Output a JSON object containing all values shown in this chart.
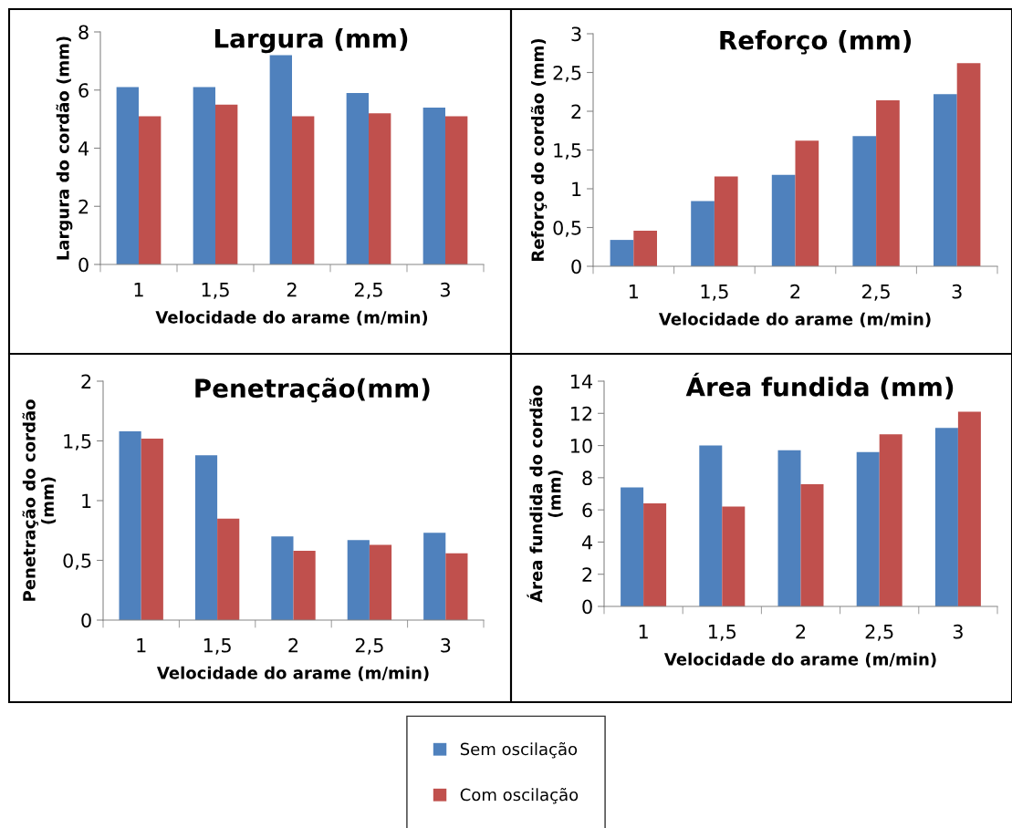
{
  "chart_data": [
    {
      "type": "bar",
      "title": "Largura (mm)",
      "xlabel": "Velocidade do arame (m/min)",
      "ylabel": "Largura do cordão (mm)",
      "categories": [
        "1",
        "1,5",
        "2",
        "2,5",
        "3"
      ],
      "series": [
        {
          "name": "Sem oscilação",
          "color": "#4f81bd",
          "values": [
            6.1,
            6.1,
            7.2,
            5.9,
            5.4
          ]
        },
        {
          "name": "Com oscilação",
          "color": "#c0504d",
          "values": [
            5.1,
            5.5,
            5.1,
            5.2,
            5.1
          ]
        }
      ],
      "ylim": [
        0,
        8
      ],
      "yticks": [
        0,
        2,
        4,
        6,
        8
      ],
      "legend": "bottom"
    },
    {
      "type": "bar",
      "title": "Reforço (mm)",
      "xlabel": "Velocidade do arame (m/min)",
      "ylabel": "Reforço do cordão (mm)",
      "categories": [
        "1",
        "1,5",
        "2",
        "2,5",
        "3"
      ],
      "series": [
        {
          "color": "#4f81bd",
          "values": [
            0.34,
            0.84,
            1.18,
            1.68,
            2.22
          ]
        },
        {
          "color": "#c0504d",
          "values": [
            0.46,
            1.16,
            1.62,
            2.14,
            2.62
          ]
        }
      ],
      "ylim": [
        0,
        3
      ],
      "yticks": [
        0,
        {
          "value": 0.5,
          "label": "0,5"
        },
        1,
        {
          "value": 1.5,
          "label": "1,5"
        },
        2,
        {
          "value": 2.5,
          "label": "2,5"
        },
        3
      ]
    },
    {
      "type": "bar",
      "title": "Penetração(mm)",
      "xlabel": "Velocidade do arame (m/min)",
      "ylabel": "Penetração do cordão\n(mm)",
      "categories": [
        "1",
        "1,5",
        "2",
        "2,5",
        "3"
      ],
      "series": [
        {
          "color": "#4f81bd",
          "values": [
            1.58,
            1.38,
            0.7,
            0.67,
            0.73
          ]
        },
        {
          "color": "#c0504d",
          "values": [
            1.52,
            0.85,
            0.58,
            0.63,
            0.56
          ]
        }
      ],
      "ylim": [
        0,
        2
      ],
      "yticks": [
        0,
        {
          "value": 0.5,
          "label": "0,5"
        },
        1,
        {
          "value": 1.5,
          "label": "1,5"
        },
        2
      ]
    },
    {
      "type": "bar",
      "title": "Área fundida (mm)",
      "xlabel": "Velocidade do arame (m/min)",
      "ylabel": "Área fundida do cordão\n(mm)",
      "categories": [
        "1",
        "1,5",
        "2",
        "2,5",
        "3"
      ],
      "series": [
        {
          "color": "#4f81bd",
          "values": [
            7.4,
            10.0,
            9.7,
            9.6,
            11.1
          ]
        },
        {
          "color": "#c0504d",
          "values": [
            6.4,
            6.2,
            7.6,
            10.7,
            12.1
          ]
        }
      ],
      "ylim": [
        0,
        14
      ],
      "yticks": [
        0,
        2,
        4,
        6,
        8,
        10,
        12,
        14
      ]
    }
  ]
}
